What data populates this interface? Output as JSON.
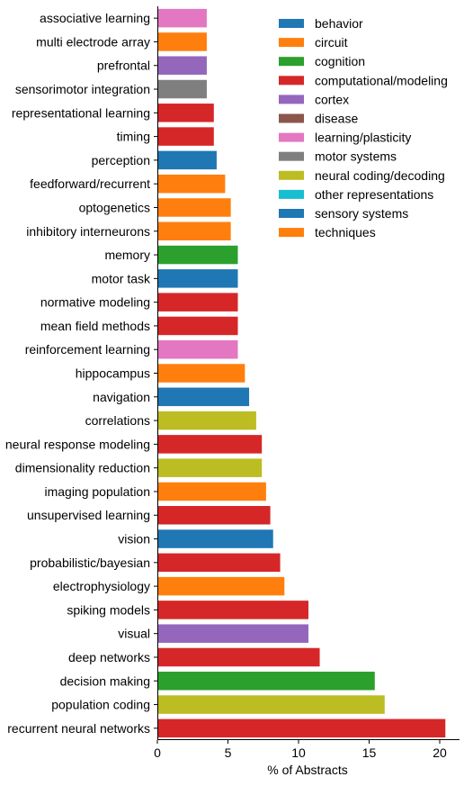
{
  "chart_data": {
    "type": "bar",
    "orientation": "horizontal",
    "title": "",
    "xlabel": "% of Abstracts",
    "ylabel": "",
    "xlim": [
      0,
      21.2
    ],
    "xticks": [
      0,
      5,
      10,
      15,
      20
    ],
    "grid": false,
    "legend_position": "top-right",
    "legend": [
      {
        "label": "behavior",
        "color": "#1f77b4"
      },
      {
        "label": "circuit",
        "color": "#ff7f0e"
      },
      {
        "label": "cognition",
        "color": "#2ca02c"
      },
      {
        "label": "computational/modeling",
        "color": "#d62728"
      },
      {
        "label": "cortex",
        "color": "#9467bd"
      },
      {
        "label": "disease",
        "color": "#8c564b"
      },
      {
        "label": "learning/plasticity",
        "color": "#e377c2"
      },
      {
        "label": "motor systems",
        "color": "#7f7f7f"
      },
      {
        "label": "neural coding/decoding",
        "color": "#bcbd22"
      },
      {
        "label": "other representations",
        "color": "#17becf"
      },
      {
        "label": "sensory systems",
        "color": "#1f77b4"
      },
      {
        "label": "techniques",
        "color": "#ff7f0e"
      }
    ],
    "categories": [
      "associative learning",
      "multi electrode array",
      "prefrontal",
      "sensorimotor integration",
      "representational learning",
      "timing",
      "perception",
      "feedforward/recurrent",
      "optogenetics",
      "inhibitory interneurons",
      "memory",
      "motor task",
      "normative modeling",
      "mean field methods",
      "reinforcement learning",
      "hippocampus",
      "navigation",
      "correlations",
      "neural response modeling",
      "dimensionality reduction",
      "imaging population",
      "unsupervised learning",
      "vision",
      "probabilistic/bayesian",
      "electrophysiology",
      "spiking models",
      "visual",
      "deep networks",
      "decision making",
      "population coding",
      "recurrent neural networks"
    ],
    "values": [
      3.5,
      3.5,
      3.5,
      3.5,
      4.0,
      4.0,
      4.2,
      4.8,
      5.2,
      5.2,
      5.7,
      5.7,
      5.7,
      5.7,
      5.7,
      6.2,
      6.5,
      7.0,
      7.4,
      7.4,
      7.7,
      8.0,
      8.2,
      8.7,
      9.0,
      10.7,
      10.7,
      11.5,
      15.4,
      16.1,
      20.4
    ],
    "colors": [
      "#e377c2",
      "#ff7f0e",
      "#9467bd",
      "#7f7f7f",
      "#d62728",
      "#d62728",
      "#1f77b4",
      "#ff7f0e",
      "#ff7f0e",
      "#ff7f0e",
      "#2ca02c",
      "#1f77b4",
      "#d62728",
      "#d62728",
      "#e377c2",
      "#ff7f0e",
      "#1f77b4",
      "#bcbd22",
      "#d62728",
      "#bcbd22",
      "#ff7f0e",
      "#d62728",
      "#1f77b4",
      "#d62728",
      "#ff7f0e",
      "#d62728",
      "#9467bd",
      "#d62728",
      "#2ca02c",
      "#bcbd22",
      "#d62728"
    ]
  }
}
